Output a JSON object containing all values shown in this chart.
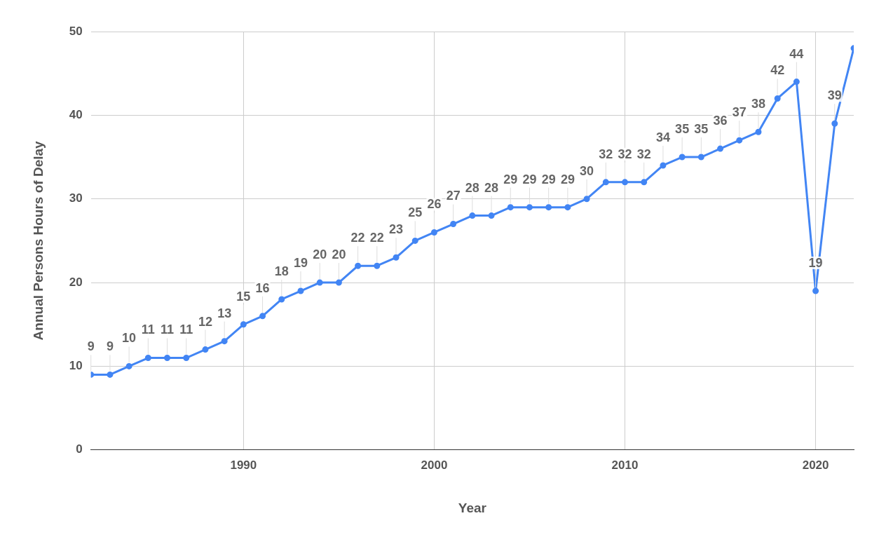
{
  "chart_data": {
    "type": "line",
    "xlabel": "Year",
    "ylabel": "Annual Persons Hours of Delay",
    "x": [
      1982,
      1983,
      1984,
      1985,
      1986,
      1987,
      1988,
      1989,
      1990,
      1991,
      1992,
      1993,
      1994,
      1995,
      1996,
      1997,
      1998,
      1999,
      2000,
      2001,
      2002,
      2003,
      2004,
      2005,
      2006,
      2007,
      2008,
      2009,
      2010,
      2011,
      2012,
      2013,
      2014,
      2015,
      2016,
      2017,
      2018,
      2019,
      2020,
      2021,
      2022
    ],
    "series": [
      {
        "color": "#4285f4",
        "values": [
          9,
          9,
          10,
          11,
          11,
          11,
          12,
          13,
          15,
          16,
          18,
          19,
          20,
          20,
          22,
          22,
          23,
          25,
          26,
          27,
          28,
          28,
          29,
          29,
          29,
          29,
          30,
          32,
          32,
          32,
          34,
          35,
          35,
          36,
          37,
          38,
          42,
          44,
          19,
          39,
          48
        ],
        "value_labels": [
          "9",
          "9",
          "10",
          "11",
          "11",
          "11",
          "12",
          "13",
          "15",
          "16",
          "18",
          "19",
          "20",
          "20",
          "22",
          "22",
          "23",
          "25",
          "26",
          "27",
          "28",
          "28",
          "29",
          "29",
          "29",
          "29",
          "30",
          "32",
          "32",
          "32",
          "34",
          "35",
          "35",
          "36",
          "37",
          "38",
          "42",
          "44",
          "19",
          "39",
          null
        ]
      }
    ],
    "xlim": [
      1982,
      2022
    ],
    "xticks": [
      1990,
      2000,
      2010,
      2020
    ],
    "ylim": [
      0,
      50
    ],
    "yticks": [
      0,
      10,
      20,
      30,
      40,
      50
    ],
    "grid": true,
    "legend": false,
    "marker": "circle",
    "line_style": "solid"
  }
}
